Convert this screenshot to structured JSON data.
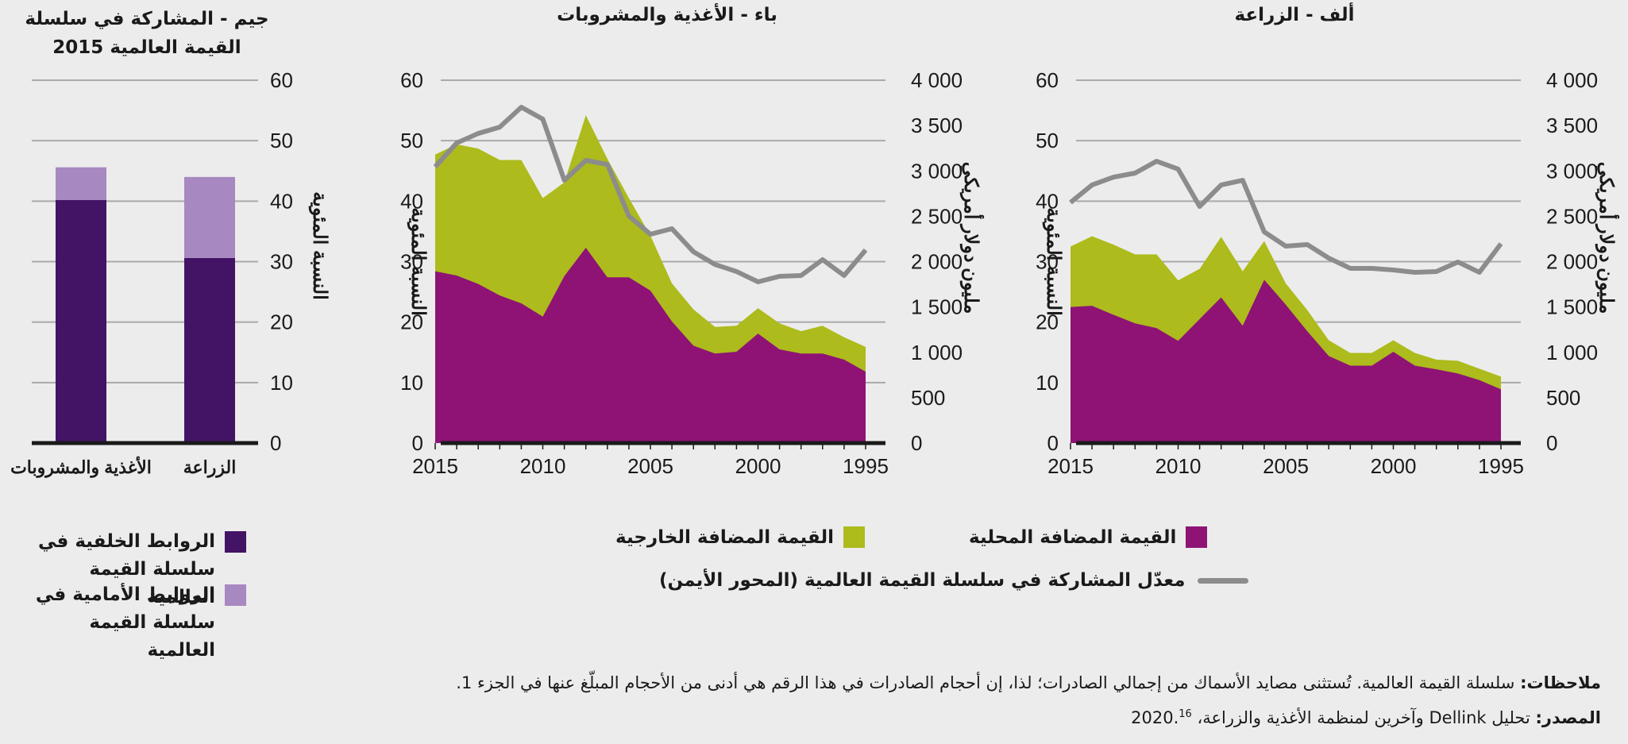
{
  "colors": {
    "domestic": "#8e1375",
    "foreign": "#adbb1c",
    "participation_line": "#8c8c8c",
    "backward": "#431466",
    "forward": "#a888c0",
    "grid": "#aaaaaa",
    "axis": "#1a1a1a"
  },
  "legend_main": {
    "domestic_label": "القيمة المضافة المحلية",
    "foreign_label": "القيمة المضافة الخارجية",
    "line_label": "معدّل المشاركة في سلسلة القيمة العالمية (المحور الأيمن)"
  },
  "legend_c": {
    "backward_label_1": "الروابط الخلفية في",
    "backward_label_2": "سلسلة القيمة العالمية",
    "forward_label_1": "الروابط الأمامية في",
    "forward_label_2": "سلسلة القيمة العالمية"
  },
  "notes": {
    "notes_label": "ملاحظات:",
    "notes_text": " سلسلة القيمة العالمية. تُستثنى مصايد الأسماك من إجمالي الصادرات؛ لذا، إن أحجام الصادرات في هذا الرقم هي أدنى من الأحجام المبلّغ عنها في الجزء 1.",
    "source_label": "المصدر:",
    "source_text": " تحليل Dellink وآخرين لمنظمة الأغذية والزراعة، 2020.",
    "source_sup": "16"
  },
  "chart_data": [
    {
      "id": "A",
      "type": "area",
      "title": "ألف - الزراعة",
      "ylabel": "النسبة المئوية",
      "y2label": "مليون دولار أمريكي",
      "x": [
        2015,
        2014,
        2013,
        2012,
        2011,
        2010,
        2009,
        2008,
        2007,
        2006,
        2005,
        2004,
        2003,
        2002,
        2001,
        2000,
        1999,
        1998,
        1997,
        1996,
        1995
      ],
      "x_ticks": [
        2015,
        2010,
        2005,
        2000,
        1995
      ],
      "x_reversed": true,
      "ylim": [
        0,
        60
      ],
      "y_ticks": [
        0,
        10,
        20,
        30,
        40,
        50,
        60
      ],
      "y2lim": [
        0,
        4000
      ],
      "y2_ticks": [
        0,
        500,
        1000,
        1500,
        2000,
        2500,
        3000,
        3500,
        4000
      ],
      "y2_tick_labels": [
        "0",
        "500",
        "1 000",
        "1 500",
        "2 000",
        "2 500",
        "3 000",
        "3 500",
        "4 000"
      ],
      "series": [
        {
          "name": "القيمة المضافة المحلية",
          "kind": "area",
          "values": [
            22.5,
            22.7,
            21.2,
            19.8,
            19.0,
            16.9,
            20.5,
            24.1,
            19.4,
            27.0,
            22.9,
            18.5,
            14.4,
            12.8,
            12.8,
            15.1,
            12.8,
            12.2,
            11.5,
            10.4,
            8.9
          ]
        },
        {
          "name": "القيمة المضافة الخارجية",
          "kind": "area-total",
          "values": [
            32.5,
            34.2,
            32.8,
            31.2,
            31.2,
            26.9,
            28.8,
            34.1,
            28.4,
            33.4,
            26.4,
            22.0,
            17.0,
            14.9,
            14.9,
            17.0,
            14.9,
            13.8,
            13.6,
            12.3,
            11.0
          ]
        },
        {
          "name": "معدّل المشاركة في سلسلة القيمة العالمية (المحور الأيمن)",
          "kind": "line",
          "axis": "right",
          "values": [
            2652,
            2845,
            2932,
            2976,
            3107,
            3020,
            2608,
            2845,
            2897,
            2328,
            2171,
            2188,
            2039,
            1926,
            1926,
            1908,
            1882,
            1891,
            1996,
            1882,
            2197
          ]
        }
      ]
    },
    {
      "id": "B",
      "type": "area",
      "title": "باء - الأغذية والمشروبات",
      "ylabel": "النسبة المئوية",
      "y2label": "مليون دولار أمريكي",
      "x": [
        2015,
        2014,
        2013,
        2012,
        2011,
        2010,
        2009,
        2008,
        2007,
        2006,
        2005,
        2004,
        2003,
        2002,
        2001,
        2000,
        1999,
        1998,
        1997,
        1996,
        1995
      ],
      "x_ticks": [
        2015,
        2010,
        2005,
        2000,
        1995
      ],
      "x_reversed": true,
      "ylim": [
        0,
        60
      ],
      "y_ticks": [
        0,
        10,
        20,
        30,
        40,
        50,
        60
      ],
      "y2lim": [
        0,
        4000
      ],
      "y2_ticks": [
        0,
        500,
        1000,
        1500,
        2000,
        2500,
        3000,
        3500,
        4000
      ],
      "y2_tick_labels": [
        "0",
        "500",
        "1 000",
        "1 500",
        "2 000",
        "2 500",
        "3 000",
        "3 500",
        "4 000"
      ],
      "series": [
        {
          "name": "القيمة المضافة المحلية",
          "kind": "area",
          "values": [
            28.4,
            27.7,
            26.3,
            24.4,
            23.1,
            20.9,
            27.6,
            32.3,
            27.4,
            27.4,
            25.2,
            20.1,
            16.1,
            14.8,
            15.1,
            18.1,
            15.5,
            14.8,
            14.8,
            13.8,
            11.8
          ]
        },
        {
          "name": "القيمة المضافة الخارجية",
          "kind": "area-total",
          "values": [
            47.7,
            49.4,
            48.7,
            46.8,
            46.8,
            40.5,
            43.1,
            54.2,
            47.0,
            40.5,
            34.3,
            26.4,
            22.1,
            19.2,
            19.4,
            22.3,
            19.8,
            18.5,
            19.4,
            17.5,
            15.9
          ]
        },
        {
          "name": "معدّل المشاركة في سلسلة القيمة العالمية (المحور الأيمن)",
          "kind": "line",
          "axis": "right",
          "values": [
            3046,
            3308,
            3413,
            3483,
            3702,
            3571,
            2897,
            3116,
            3072,
            2503,
            2302,
            2363,
            2109,
            1969,
            1891,
            1777,
            1838,
            1847,
            2022,
            1847,
            2127
          ]
        }
      ]
    },
    {
      "id": "C",
      "type": "bar",
      "stacked": true,
      "title_line1": "جيم - المشاركة في سلسلة",
      "title_line2": "القيمة العالمية 2015",
      "ylabel": "النسبة المئوية",
      "categories": [
        "الأغذية والمشروبات",
        "الزراعة"
      ],
      "ylim": [
        0,
        60
      ],
      "y_ticks": [
        0,
        10,
        20,
        30,
        40,
        50,
        60
      ],
      "series": [
        {
          "name": "الروابط الخلفية في سلسلة القيمة العالمية",
          "values": [
            40.2,
            30.6
          ]
        },
        {
          "name": "الروابط الأمامية في سلسلة القيمة العالمية",
          "values": [
            5.4,
            13.4
          ]
        }
      ]
    }
  ]
}
